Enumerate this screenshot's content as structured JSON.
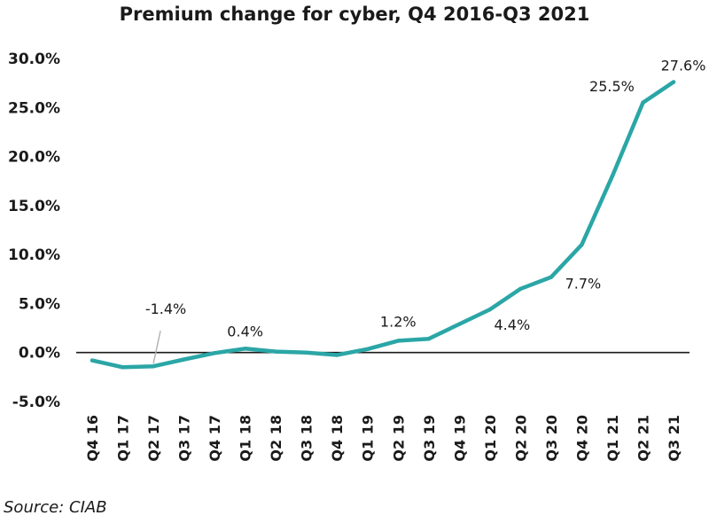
{
  "chart_data": {
    "type": "line",
    "title": "Premium change for cyber, Q4 2016-Q3 2021",
    "source": "Source: CIAB",
    "categories": [
      "Q4 16",
      "Q1 17",
      "Q2 17",
      "Q3 17",
      "Q4 17",
      "Q1 18",
      "Q2 18",
      "Q3 18",
      "Q4 18",
      "Q1 19",
      "Q2 19",
      "Q3 19",
      "Q4 19",
      "Q1 20",
      "Q2 20",
      "Q3 20",
      "Q4 20",
      "Q1 21",
      "Q2 21",
      "Q3 21"
    ],
    "series": [
      {
        "color": "#2ba6a6",
        "values": [
          -0.8,
          -1.5,
          -1.4,
          -0.7,
          -0.05,
          0.4,
          0.1,
          0.0,
          -0.25,
          0.35,
          1.2,
          1.4,
          2.9,
          4.4,
          6.5,
          7.7,
          11.0,
          18.0,
          25.5,
          27.6
        ]
      }
    ],
    "yticks": [
      "30.0%",
      "25.0%",
      "20.0%",
      "15.0%",
      "10.0%",
      "5.0%",
      "0.0%",
      "-5.0%"
    ],
    "ylim": [
      -5,
      30
    ],
    "grid": false,
    "zero_line": true,
    "data_labels": [
      {
        "index": 2,
        "text": "-1.4%",
        "callout": true
      },
      {
        "index": 5,
        "text": "0.4%"
      },
      {
        "index": 10,
        "text": "1.2%"
      },
      {
        "index": 13,
        "text": "4.4%"
      },
      {
        "index": 15,
        "text": "7.7%"
      },
      {
        "index": 18,
        "text": "25.5%"
      },
      {
        "index": 19,
        "text": "27.6%"
      }
    ]
  }
}
